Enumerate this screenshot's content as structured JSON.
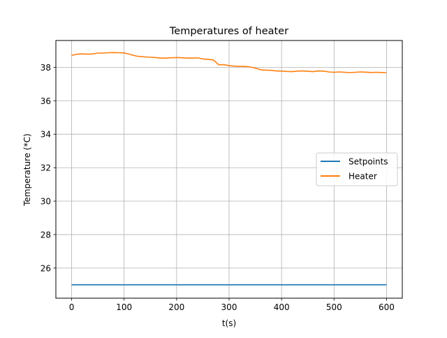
{
  "chart_data": {
    "type": "line",
    "title": "Temperatures of heater",
    "xlabel": "t(s)",
    "ylabel": "Temperature (*C)",
    "xlim": [
      -30,
      630
    ],
    "ylim": [
      24.2,
      39.6
    ],
    "xticks": [
      0,
      100,
      200,
      300,
      400,
      500,
      600
    ],
    "xtick_labels": [
      "0",
      "100",
      "200",
      "300",
      "400",
      "500",
      "600"
    ],
    "yticks": [
      26,
      28,
      30,
      32,
      34,
      36,
      38
    ],
    "ytick_labels": [
      "26",
      "28",
      "30",
      "32",
      "34",
      "36",
      "38"
    ],
    "grid": true,
    "legend_position": "center-right",
    "series": [
      {
        "name": "Setpoints",
        "color": "#1f77b4",
        "x": [
          0,
          600
        ],
        "y": [
          25.0,
          25.0
        ]
      },
      {
        "name": "Heater",
        "color": "#ff7f0e",
        "x": [
          0,
          5,
          10,
          20,
          30,
          40,
          50,
          60,
          70,
          80,
          90,
          100,
          110,
          120,
          125,
          130,
          140,
          150,
          160,
          170,
          180,
          190,
          200,
          210,
          220,
          230,
          240,
          250,
          260,
          270,
          275,
          280,
          290,
          300,
          310,
          320,
          330,
          340,
          350,
          360,
          370,
          380,
          390,
          400,
          410,
          420,
          430,
          440,
          450,
          460,
          470,
          480,
          490,
          500,
          510,
          520,
          530,
          540,
          550,
          560,
          570,
          580,
          590,
          600
        ],
        "y": [
          38.7,
          38.75,
          38.78,
          38.8,
          38.78,
          38.8,
          38.85,
          38.85,
          38.87,
          38.88,
          38.87,
          38.86,
          38.78,
          38.7,
          38.66,
          38.65,
          38.62,
          38.6,
          38.58,
          38.55,
          38.55,
          38.57,
          38.58,
          38.57,
          38.55,
          38.55,
          38.56,
          38.5,
          38.47,
          38.44,
          38.3,
          38.15,
          38.15,
          38.1,
          38.07,
          38.05,
          38.05,
          38.02,
          37.95,
          37.85,
          37.83,
          37.82,
          37.78,
          37.77,
          37.75,
          37.74,
          37.77,
          37.78,
          37.76,
          37.74,
          37.78,
          37.77,
          37.72,
          37.7,
          37.72,
          37.7,
          37.68,
          37.7,
          37.72,
          37.71,
          37.69,
          37.7,
          37.69,
          37.68
        ]
      }
    ]
  }
}
